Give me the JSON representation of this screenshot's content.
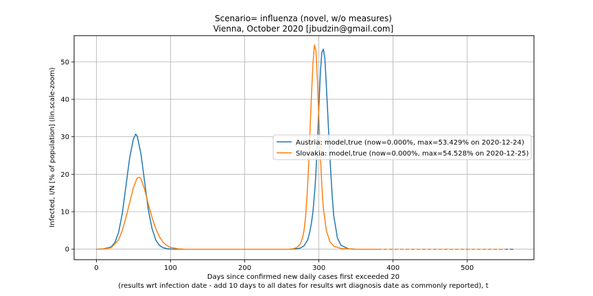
{
  "chart_data": {
    "type": "line",
    "title_line1": "Scenario= influenza (novel, w/o measures)",
    "title_line2": "Vienna, October 2020 [jbudzin@gmail.com]",
    "xlabel_line1": "Days since confirmed new daily cases first exceeded 20",
    "xlabel_line2": "(results wrt infection date - add 10 days to all dates for results wrt diagnosis date as commonly reported), t",
    "ylabel": "Infected, I/N [% of population] (lin.scale-zoom)",
    "xlim": [
      -30,
      590
    ],
    "ylim": [
      -2.8,
      57
    ],
    "xticks": [
      0,
      100,
      200,
      300,
      400,
      500
    ],
    "yticks": [
      0,
      10,
      20,
      30,
      40,
      50
    ],
    "grid": true,
    "legend_position": "center-right",
    "series": [
      {
        "name": "Austria: model,true (now=0.000%, max=53.429% on 2020-12-24)",
        "color": "#1f77b4",
        "solid_end": 380,
        "x_end": 562,
        "x": [
          0,
          10,
          20,
          25,
          30,
          35,
          40,
          45,
          50,
          53,
          55,
          60,
          65,
          70,
          75,
          80,
          85,
          90,
          95,
          100,
          110,
          120,
          200,
          260,
          270,
          275,
          280,
          285,
          288,
          290,
          292,
          295,
          298,
          300,
          302,
          304,
          306,
          308,
          310,
          312,
          315,
          318,
          320,
          325,
          330,
          340,
          350,
          380
        ],
        "y": [
          0,
          0.1,
          0.6,
          1.8,
          4.5,
          9.5,
          17,
          24.5,
          29.5,
          30.7,
          30.2,
          25.5,
          18,
          10.5,
          5.5,
          2.5,
          1,
          0.4,
          0.15,
          0.05,
          0,
          0,
          0,
          0,
          0.1,
          0.3,
          0.9,
          2.5,
          4.8,
          7,
          10,
          17,
          28,
          38,
          47,
          52.5,
          53.4,
          51,
          44,
          36,
          24,
          14,
          9,
          3,
          1,
          0.1,
          0,
          0
        ]
      },
      {
        "name": "Slovakia: model,true (now=0.000%, max=54.528% on 2020-12-25)",
        "color": "#ff7f0e",
        "solid_end": 380,
        "x_end": 552,
        "x": [
          0,
          10,
          20,
          30,
          35,
          40,
          45,
          50,
          55,
          58,
          60,
          65,
          70,
          75,
          80,
          85,
          90,
          95,
          100,
          110,
          120,
          200,
          260,
          265,
          270,
          275,
          278,
          280,
          282,
          284,
          286,
          288,
          290,
          292,
          294,
          296,
          298,
          300,
          302,
          304,
          306,
          310,
          315,
          320,
          330,
          350,
          380
        ],
        "y": [
          0,
          0.05,
          0.4,
          2.5,
          5,
          8.5,
          12.5,
          16.5,
          19,
          19.2,
          18.8,
          16,
          12,
          8.5,
          5.5,
          3.3,
          1.8,
          1,
          0.5,
          0.1,
          0,
          0,
          0,
          0.1,
          0.4,
          1.4,
          3,
          5,
          8.5,
          14,
          21.5,
          31,
          41,
          49.5,
          54.5,
          53,
          45,
          35,
          25,
          17,
          11,
          5,
          2,
          0.8,
          0.2,
          0,
          0
        ]
      }
    ]
  }
}
